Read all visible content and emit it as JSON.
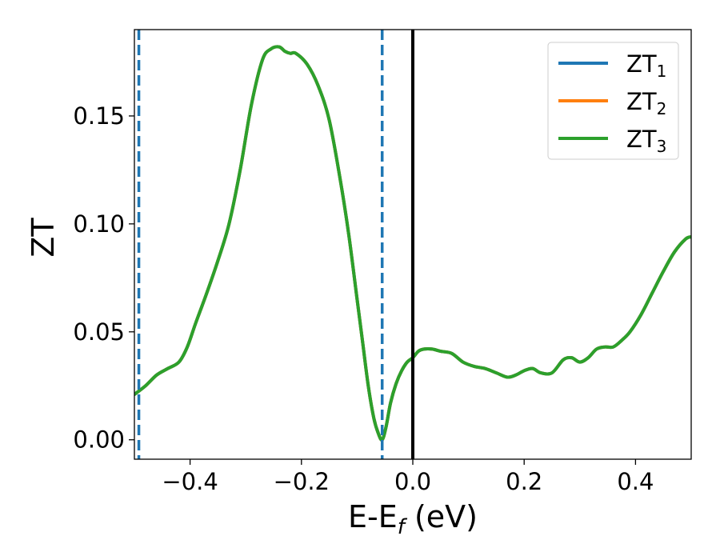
{
  "chart_data": {
    "type": "line",
    "xlabel_main": "E-E",
    "xlabel_sub": "f",
    "xlabel_unit": " (eV)",
    "ylabel": "ZT",
    "xlim": [
      -0.5,
      0.5
    ],
    "ylim": [
      -0.009,
      0.19
    ],
    "x_ticks": [
      -0.4,
      -0.2,
      0.0,
      0.2,
      0.4
    ],
    "x_tick_labels": [
      "−0.4",
      "−0.2",
      "0.0",
      "0.2",
      "0.4"
    ],
    "y_ticks": [
      0.0,
      0.05,
      0.1,
      0.15
    ],
    "y_tick_labels": [
      "0.00",
      "0.05",
      "0.10",
      "0.15"
    ],
    "grid": false,
    "legend_position": "top-right",
    "vertical_lines": [
      {
        "x": -0.492,
        "color": "#1f77b4",
        "style": "dashed"
      },
      {
        "x": -0.055,
        "color": "#1f77b4",
        "style": "dashed"
      },
      {
        "x": 0.0,
        "color": "#000000",
        "style": "solid"
      }
    ],
    "series": [
      {
        "name_main": "ZT",
        "name_sub": "1",
        "color": "#1f77b4"
      },
      {
        "name_main": "ZT",
        "name_sub": "2",
        "color": "#ff7f0e"
      },
      {
        "name_main": "ZT",
        "name_sub": "3",
        "color": "#2ca02c"
      }
    ],
    "curve": {
      "x": [
        -0.5,
        -0.48,
        -0.46,
        -0.44,
        -0.42,
        -0.405,
        -0.39,
        -0.37,
        -0.35,
        -0.33,
        -0.31,
        -0.29,
        -0.27,
        -0.255,
        -0.24,
        -0.23,
        -0.22,
        -0.21,
        -0.19,
        -0.17,
        -0.15,
        -0.13,
        -0.115,
        -0.1,
        -0.09,
        -0.08,
        -0.07,
        -0.062,
        -0.055,
        -0.048,
        -0.04,
        -0.03,
        -0.02,
        -0.01,
        0.0,
        0.01,
        0.02,
        0.035,
        0.05,
        0.07,
        0.09,
        0.11,
        0.13,
        0.15,
        0.17,
        0.185,
        0.2,
        0.215,
        0.23,
        0.25,
        0.27,
        0.285,
        0.3,
        0.315,
        0.33,
        0.345,
        0.36,
        0.375,
        0.39,
        0.41,
        0.43,
        0.45,
        0.47,
        0.49,
        0.5
      ],
      "y": [
        0.021,
        0.025,
        0.03,
        0.033,
        0.036,
        0.043,
        0.054,
        0.068,
        0.083,
        0.1,
        0.125,
        0.155,
        0.176,
        0.181,
        0.182,
        0.18,
        0.179,
        0.179,
        0.174,
        0.164,
        0.148,
        0.12,
        0.095,
        0.065,
        0.045,
        0.025,
        0.01,
        0.003,
        0.0,
        0.006,
        0.017,
        0.026,
        0.032,
        0.036,
        0.038,
        0.041,
        0.042,
        0.042,
        0.041,
        0.04,
        0.036,
        0.034,
        0.033,
        0.031,
        0.029,
        0.03,
        0.032,
        0.033,
        0.031,
        0.031,
        0.037,
        0.038,
        0.036,
        0.038,
        0.042,
        0.043,
        0.043,
        0.046,
        0.05,
        0.058,
        0.068,
        0.078,
        0.087,
        0.093,
        0.094
      ]
    }
  }
}
